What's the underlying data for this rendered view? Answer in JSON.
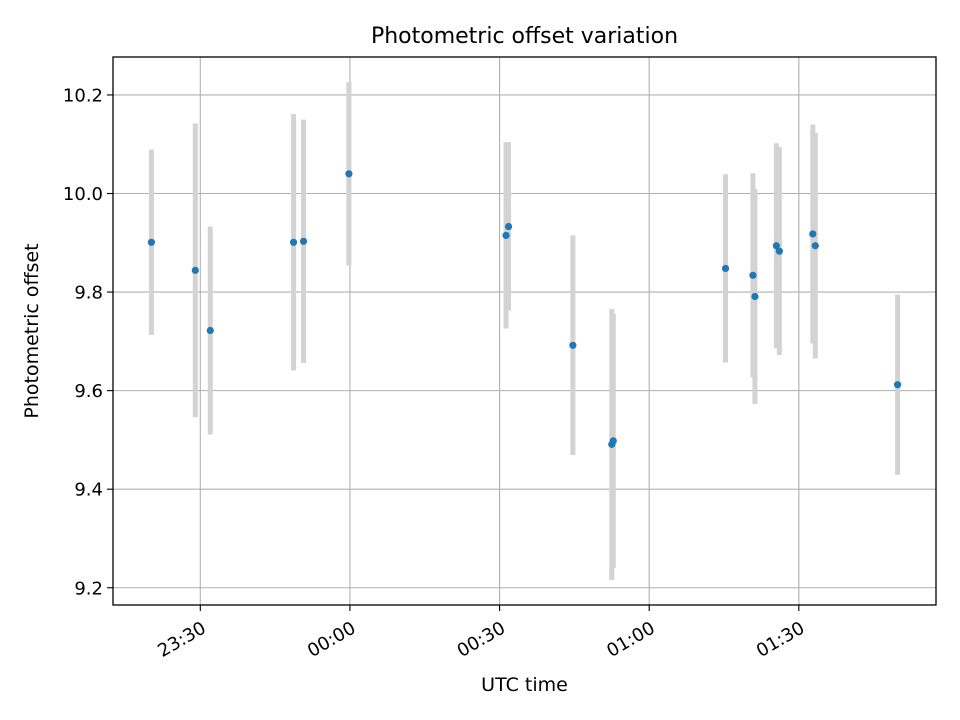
{
  "chart_data": {
    "type": "scatter",
    "title": "Photometric offset variation",
    "xlabel": "UTC time",
    "ylabel": "Photometric offset",
    "x_tick_labels": [
      "23:30",
      "00:00",
      "00:30",
      "01:00",
      "01:30"
    ],
    "x_tick_values": [
      -30,
      0,
      30,
      60,
      90
    ],
    "y_tick_labels": [
      "9.2",
      "9.4",
      "9.6",
      "9.8",
      "10.0",
      "10.2"
    ],
    "y_tick_values": [
      9.2,
      9.4,
      9.6,
      9.8,
      10.0,
      10.2
    ],
    "xlim": [
      -47.5,
      117.5
    ],
    "ylim": [
      9.165,
      10.277
    ],
    "grid": true,
    "marker_color": "#1f77b4",
    "errorbar_color": "#d3d3d3",
    "points": [
      {
        "x": -39.8,
        "y": 9.901,
        "err": 0.188
      },
      {
        "x": -31.0,
        "y": 9.844,
        "err": 0.298
      },
      {
        "x": -28.0,
        "y": 9.722,
        "err": 0.211
      },
      {
        "x": -11.3,
        "y": 9.901,
        "err": 0.26
      },
      {
        "x": -9.3,
        "y": 9.903,
        "err": 0.247
      },
      {
        "x": -0.2,
        "y": 10.04,
        "err": 0.186
      },
      {
        "x": 31.3,
        "y": 9.915,
        "err": 0.189
      },
      {
        "x": 31.8,
        "y": 9.933,
        "err": 0.171
      },
      {
        "x": 44.7,
        "y": 9.692,
        "err": 0.223
      },
      {
        "x": 52.5,
        "y": 9.491,
        "err": 0.275
      },
      {
        "x": 52.8,
        "y": 9.498,
        "err": 0.258
      },
      {
        "x": 75.3,
        "y": 9.848,
        "err": 0.191
      },
      {
        "x": 80.8,
        "y": 9.834,
        "err": 0.207
      },
      {
        "x": 81.2,
        "y": 9.791,
        "err": 0.218
      },
      {
        "x": 85.5,
        "y": 9.894,
        "err": 0.208
      },
      {
        "x": 86.1,
        "y": 9.883,
        "err": 0.211
      },
      {
        "x": 92.8,
        "y": 9.918,
        "err": 0.222
      },
      {
        "x": 93.3,
        "y": 9.894,
        "err": 0.229
      },
      {
        "x": 109.8,
        "y": 9.612,
        "err": 0.183
      }
    ]
  }
}
